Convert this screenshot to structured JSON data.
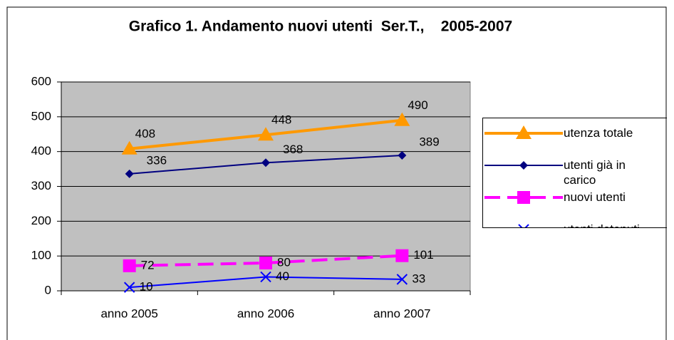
{
  "chart_data": {
    "type": "line",
    "title": "Grafico 1. Andamento nuovi utenti  Ser.T.,    2005-2007",
    "categories": [
      "anno 2005",
      "anno 2006",
      "anno 2007"
    ],
    "series": [
      {
        "name": "utenza totale",
        "color": "#ff9900",
        "marker": "triangle",
        "values": [
          408,
          448,
          490
        ]
      },
      {
        "name": "utenti già in carico",
        "color": "#000080",
        "marker": "diamond",
        "values": [
          336,
          368,
          389
        ]
      },
      {
        "name": "nuovi utenti",
        "color": "#ff00ff",
        "marker": "square",
        "dashed": true,
        "values": [
          72,
          80,
          101
        ]
      },
      {
        "name": "utenti detenuti",
        "color": "#0000ff",
        "marker": "x",
        "values": [
          10,
          40,
          33
        ]
      }
    ],
    "ylim": [
      0,
      600
    ],
    "yticks": [
      0,
      100,
      200,
      300,
      400,
      500,
      600
    ],
    "grid": true,
    "legend": "right"
  }
}
